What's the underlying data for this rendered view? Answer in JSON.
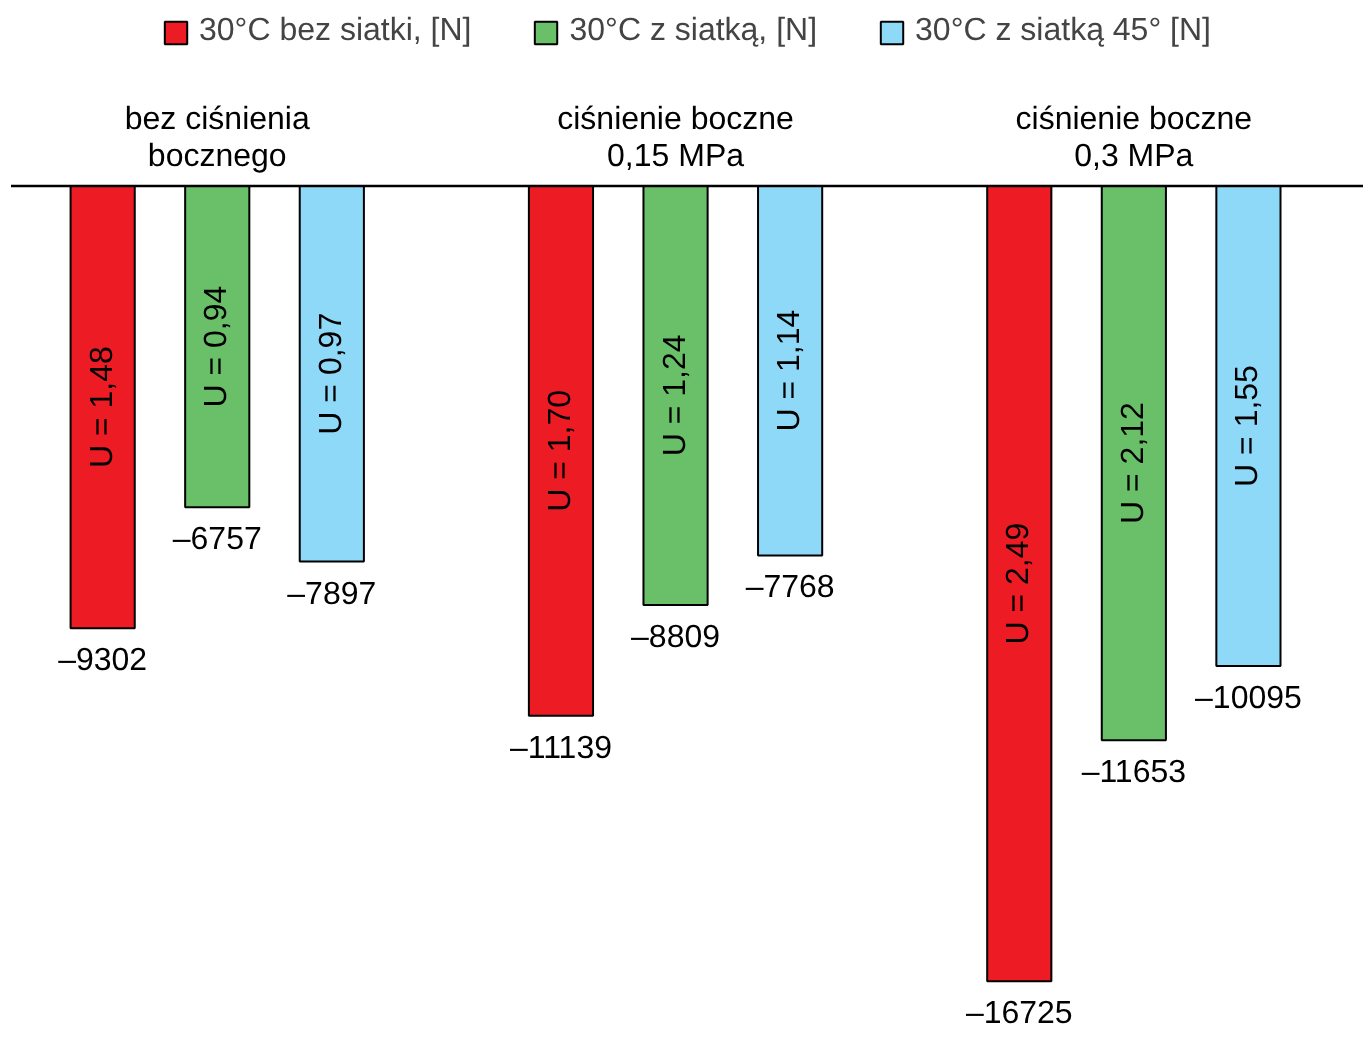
{
  "chart_data": {
    "type": "bar",
    "categories": [
      "bez ciśnienia\nbocznego",
      "ciśnienie boczne\n0,15 MPa",
      "ciśnienie boczne\n0,3 MPa"
    ],
    "series": [
      {
        "name": "30°C bez siatki, [N]",
        "color": "#ed1c24",
        "values": [
          -9302,
          -11139,
          -16725
        ],
        "value_labels": [
          "–9302",
          "–11139",
          "–16725"
        ]
      },
      {
        "name": "30°C z siatką, [N]",
        "color": "#6abf69",
        "values": [
          -6757,
          -8809,
          -11653
        ],
        "value_labels": [
          "–6757",
          "–8809",
          "–11653"
        ]
      },
      {
        "name": "30°C z siatką 45° [N]",
        "color": "#8ed8f8",
        "values": [
          -7897,
          -7768,
          -10095
        ],
        "value_labels": [
          "–7897",
          "–7768",
          "–10095"
        ]
      }
    ],
    "annotations": [
      "U = 1,48",
      "U = 0,94",
      "U = 0,97",
      "U = 1,70",
      "U = 1,24",
      "U = 1,14",
      "U = 2,49",
      "U = 2,12",
      "U = 1,55"
    ],
    "legend": "top",
    "grid": false
  }
}
